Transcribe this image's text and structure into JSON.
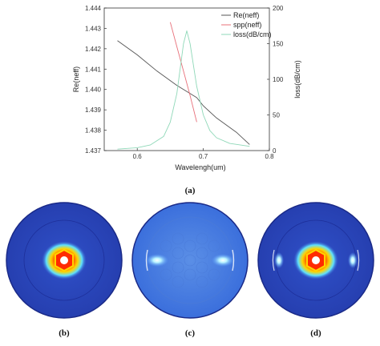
{
  "chart_data": {
    "type": "line",
    "xlabel": "Wavelengh(um)",
    "ylabel_left": "Re(neff)",
    "ylabel_right": "loss(dB/cm)",
    "xlim": [
      0.55,
      0.8
    ],
    "ylim_left": [
      1.437,
      1.444
    ],
    "ylim_right": [
      0,
      200
    ],
    "x_ticks": [
      "0.6",
      "0.7",
      "0.8"
    ],
    "y_left_ticks": [
      "1.437",
      "1.438",
      "1.439",
      "1.440",
      "1.441",
      "1.442",
      "1.443",
      "1.444"
    ],
    "y_right_ticks": [
      "0",
      "50",
      "100",
      "150",
      "200"
    ],
    "legend_position": "top-right",
    "series": [
      {
        "name": "Re(neff)",
        "axis": "left",
        "color": "#555555",
        "x": [
          0.57,
          0.6,
          0.63,
          0.66,
          0.68,
          0.69,
          0.7,
          0.72,
          0.75,
          0.77
        ],
        "y": [
          1.4424,
          1.4417,
          1.4409,
          1.4402,
          1.4398,
          1.4396,
          1.4392,
          1.4386,
          1.4379,
          1.4373
        ]
      },
      {
        "name": "spp(neff)",
        "axis": "left",
        "color": "#e8707a",
        "x": [
          0.65,
          0.66,
          0.67,
          0.68,
          0.69
        ],
        "y": [
          1.4433,
          1.4421,
          1.4409,
          1.4397,
          1.4384
        ]
      },
      {
        "name": "loss(dB/cm)",
        "axis": "right",
        "color": "#8fd8b8",
        "x": [
          0.57,
          0.6,
          0.62,
          0.64,
          0.65,
          0.66,
          0.67,
          0.675,
          0.68,
          0.69,
          0.7,
          0.71,
          0.72,
          0.74,
          0.77
        ],
        "y": [
          2,
          4,
          8,
          20,
          40,
          80,
          150,
          168,
          150,
          90,
          50,
          28,
          18,
          10,
          6
        ]
      }
    ]
  },
  "captions": {
    "a": "(a)",
    "b": "(b)",
    "c": "(c)",
    "d": "(d)"
  },
  "colors": {
    "field_background": "#3b5fd0",
    "field_outer": "#2a48b8",
    "field_edge": "#1a2a88"
  }
}
